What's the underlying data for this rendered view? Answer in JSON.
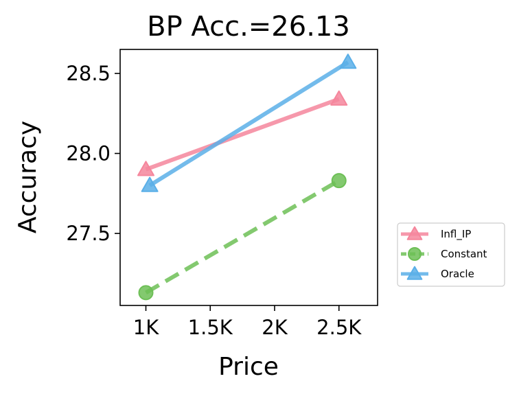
{
  "chart_data": {
    "type": "line",
    "title": "BP Acc.=26.13",
    "xlabel": "Price",
    "ylabel": "Accuracy",
    "xlim": [
      800,
      2800
    ],
    "ylim": [
      27.05,
      28.65
    ],
    "xticks": [
      {
        "value": 1000,
        "label": "1K"
      },
      {
        "value": 1500,
        "label": "1.5K"
      },
      {
        "value": 2000,
        "label": "2K"
      },
      {
        "value": 2500,
        "label": "2.5K"
      }
    ],
    "yticks": [
      {
        "value": 27.5,
        "label": "27.5"
      },
      {
        "value": 28.0,
        "label": "28.0"
      },
      {
        "value": 28.5,
        "label": "28.5"
      }
    ],
    "grid": false,
    "legend_position": "outside-right-bottom",
    "series": [
      {
        "name": "Infl_IP",
        "color": "#f5869c",
        "marker": "triangle",
        "dash": "solid",
        "x": [
          1000,
          2500
        ],
        "y": [
          27.9,
          28.34
        ]
      },
      {
        "name": "Constant",
        "color": "#6dbf56",
        "marker": "circle",
        "dash": "dashed",
        "x": [
          1000,
          2500
        ],
        "y": [
          27.13,
          27.83
        ]
      },
      {
        "name": "Oracle",
        "color": "#5aafe8",
        "marker": "triangle",
        "dash": "solid",
        "x": [
          1030,
          2570
        ],
        "y": [
          27.8,
          28.57
        ]
      }
    ]
  }
}
